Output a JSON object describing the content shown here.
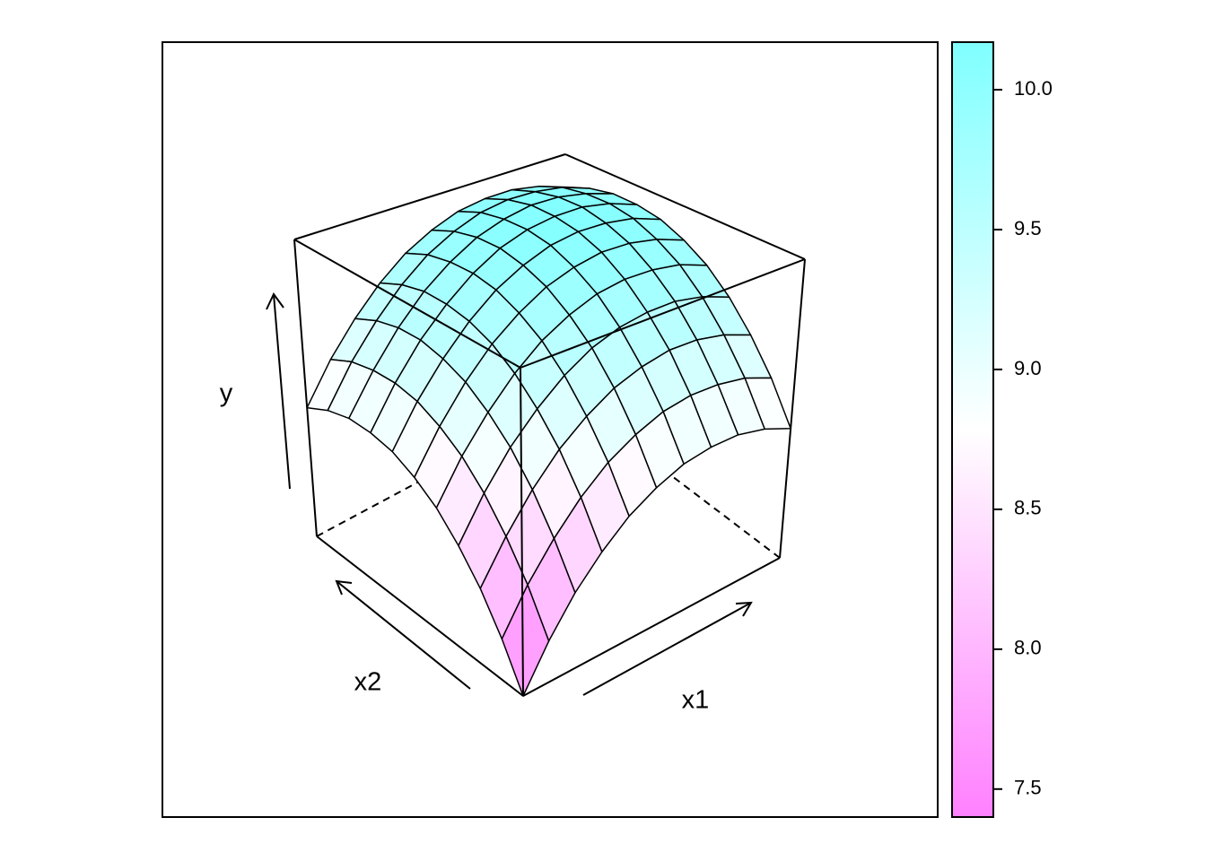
{
  "chart_data": {
    "type": "wireframe",
    "x_label": "x1",
    "x2_label": "x2",
    "y_label": "y",
    "xlim": [
      0,
      1
    ],
    "x2lim": [
      0,
      1
    ],
    "x1": [
      0,
      0.1,
      0.2,
      0.3,
      0.4,
      0.5,
      0.6,
      0.7,
      0.8,
      0.9,
      1
    ],
    "x2": [
      0,
      0.1,
      0.2,
      0.3,
      0.4,
      0.5,
      0.6,
      0.7,
      0.8,
      0.9,
      1
    ],
    "z": [
      [
        7.4,
        7.75,
        8.05,
        8.29,
        8.49,
        8.63,
        8.73,
        8.77,
        8.77,
        8.71,
        8.6
      ],
      [
        7.75,
        8.1,
        8.39,
        8.64,
        8.84,
        8.98,
        9.08,
        9.12,
        9.11,
        9.06,
        8.95
      ],
      [
        8.05,
        8.39,
        8.69,
        8.94,
        9.13,
        9.28,
        9.37,
        9.42,
        9.41,
        9.35,
        9.24
      ],
      [
        8.29,
        8.64,
        8.94,
        9.18,
        9.38,
        9.53,
        9.62,
        9.66,
        9.66,
        9.6,
        9.49
      ],
      [
        8.49,
        8.84,
        9.13,
        9.38,
        9.58,
        9.72,
        9.82,
        9.86,
        9.85,
        9.8,
        9.69
      ],
      [
        8.63,
        8.98,
        9.28,
        9.53,
        9.72,
        9.87,
        9.96,
        10.01,
        10.0,
        9.94,
        9.83
      ],
      [
        8.73,
        9.08,
        9.37,
        9.62,
        9.82,
        9.96,
        10.06,
        10.1,
        10.09,
        10.04,
        9.93
      ],
      [
        8.77,
        9.12,
        9.42,
        9.66,
        9.86,
        10.01,
        10.1,
        10.14,
        10.14,
        10.08,
        9.97
      ],
      [
        8.77,
        9.11,
        9.41,
        9.66,
        9.85,
        10.0,
        10.09,
        10.14,
        10.13,
        10.07,
        9.97
      ],
      [
        8.71,
        9.06,
        9.35,
        9.6,
        9.8,
        9.94,
        10.04,
        10.08,
        10.07,
        10.02,
        9.91
      ],
      [
        8.6,
        8.95,
        9.24,
        9.49,
        9.69,
        9.83,
        9.93,
        9.97,
        9.97,
        9.91,
        9.8
      ]
    ],
    "zlim": [
      7.4,
      10.17
    ],
    "colorkey": {
      "colors": [
        "#ff80ff",
        "#ffffff",
        "#80ffff"
      ],
      "ticks": [
        7.5,
        {
          "value": 8,
          "label": "8.0"
        },
        8.5,
        {
          "value": 9,
          "label": "9.0"
        },
        9.5,
        {
          "value": 10,
          "label": "10.0"
        }
      ]
    }
  }
}
